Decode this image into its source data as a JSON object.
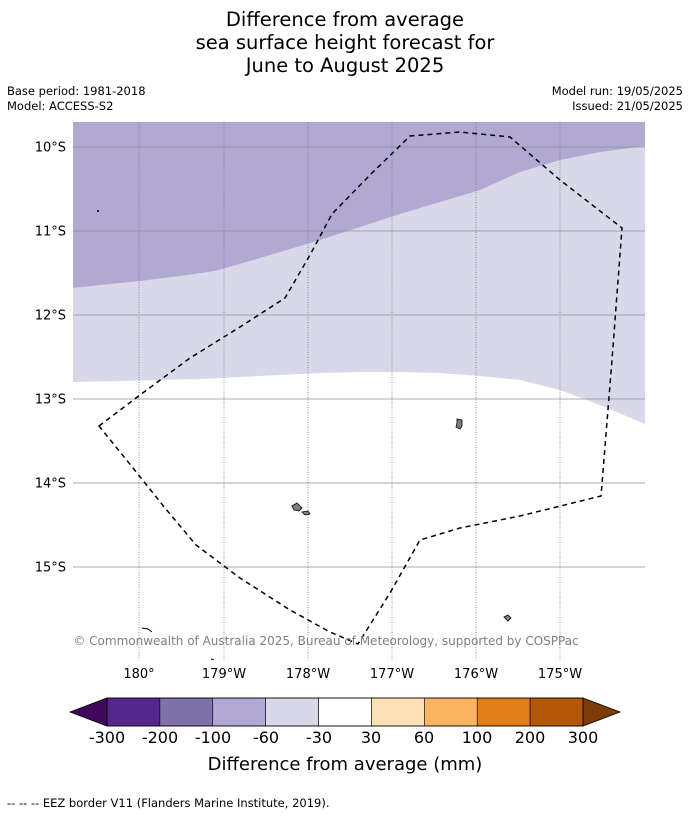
{
  "title": {
    "line1": "Difference from average",
    "line2": "sea surface height forecast for",
    "line3": "June to August 2025"
  },
  "meta": {
    "base_period": "Base period: 1981-2018",
    "model": "Model: ACCESS-S2",
    "model_run": "Model run: 19/05/2025",
    "issued": "Issued: 21/05/2025"
  },
  "map": {
    "lat_labels": [
      "10°S",
      "11°S",
      "12°S",
      "13°S",
      "14°S",
      "15°S"
    ],
    "lon_labels": [
      "180°",
      "179°W",
      "178°W",
      "177°W",
      "176°W",
      "175°W"
    ],
    "copyright": "© Commonwealth of Australia 2025, Bureau of Meteorology, supported by COSPPac"
  },
  "colorbar": {
    "labels": [
      "-300",
      "-200",
      "-100",
      "-60",
      "-30",
      "30",
      "60",
      "100",
      "200",
      "300"
    ],
    "colors": [
      "#3f0a5c",
      "#54278f",
      "#7e70ab",
      "#b1a9d1",
      "#d8d8e9",
      "#ffffff",
      "#fde0b5",
      "#fbb45f",
      "#e07f16",
      "#b35806",
      "#7e3b0a"
    ],
    "title": "Difference from average (mm)"
  },
  "footnote": "--  --  -- EEZ border V11 (Flanders Marine Institute, 2019)."
}
